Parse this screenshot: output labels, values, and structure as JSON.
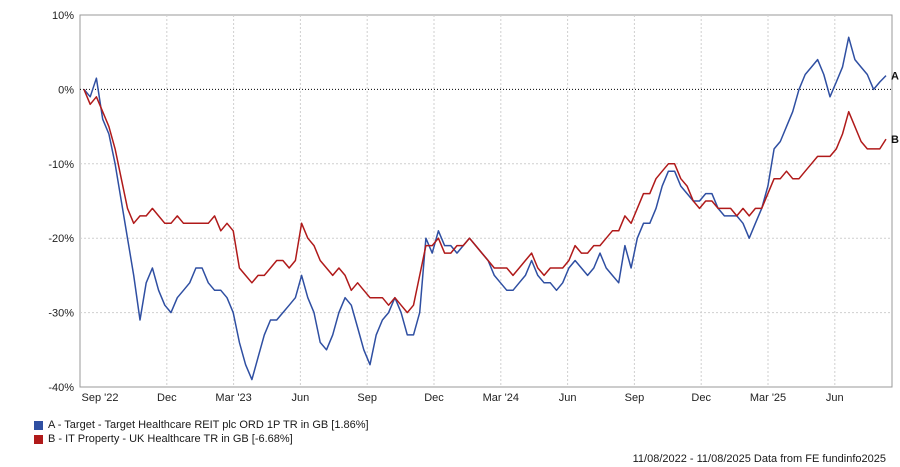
{
  "chart_data": {
    "type": "line",
    "x_ticks": [
      "Sep '22",
      "Dec",
      "Mar '23",
      "Jun",
      "Sep",
      "Dec",
      "Mar '24",
      "Jun",
      "Sep",
      "Dec",
      "Mar '25",
      "Jun"
    ],
    "y_ticks": [
      "10%",
      "0%",
      "-10%",
      "-20%",
      "-30%",
      "-40%"
    ],
    "ylim": [
      -40,
      10
    ],
    "grid": true,
    "reference_line": 0,
    "series": [
      {
        "name": "A - Target - Target Healthcare REIT plc ORD 1P TR in GB [1.86%]",
        "end_label": "A",
        "color": "#2f4fa2",
        "values": [
          0,
          -1,
          1.5,
          -4,
          -6,
          -10,
          -15,
          -20,
          -25,
          -31,
          -26,
          -24,
          -27,
          -29,
          -30,
          -28,
          -27,
          -26,
          -24,
          -24,
          -26,
          -27,
          -27,
          -28,
          -30,
          -34,
          -37,
          -39,
          -36,
          -33,
          -31,
          -31,
          -30,
          -29,
          -28,
          -25,
          -28,
          -30,
          -34,
          -35,
          -33,
          -30,
          -28,
          -29,
          -32,
          -35,
          -37,
          -33,
          -31,
          -30,
          -28,
          -30,
          -33,
          -33,
          -30,
          -20,
          -22,
          -19,
          -21,
          -21,
          -22,
          -21,
          -20,
          -21,
          -22,
          -23,
          -25,
          -26,
          -27,
          -27,
          -26,
          -25,
          -23,
          -25,
          -26,
          -26,
          -27,
          -26,
          -24,
          -23,
          -24,
          -25,
          -24,
          -22,
          -24,
          -25,
          -26,
          -21,
          -24,
          -20,
          -18,
          -18,
          -16,
          -13,
          -11,
          -11,
          -13,
          -14,
          -15,
          -15,
          -14,
          -14,
          -16,
          -17,
          -17,
          -17,
          -18,
          -20,
          -18,
          -16,
          -13,
          -8,
          -7,
          -5,
          -3,
          0,
          2,
          3,
          4,
          2,
          -1,
          1,
          3,
          7,
          4,
          3,
          2,
          0,
          1,
          1.86
        ]
      },
      {
        "name": "B - IT Property - UK Healthcare TR in GB [-6.68%]",
        "end_label": "B",
        "color": "#b01a1a",
        "values": [
          0,
          -2,
          -1,
          -3,
          -5,
          -8,
          -12,
          -16,
          -18,
          -17,
          -17,
          -16,
          -17,
          -18,
          -18,
          -17,
          -18,
          -18,
          -18,
          -18,
          -18,
          -17,
          -19,
          -18,
          -19,
          -24,
          -25,
          -26,
          -25,
          -25,
          -24,
          -23,
          -23,
          -24,
          -23,
          -18,
          -20,
          -21,
          -23,
          -24,
          -25,
          -24,
          -25,
          -27,
          -26,
          -27,
          -28,
          -28,
          -28,
          -29,
          -28,
          -29,
          -30,
          -29,
          -25,
          -21,
          -21,
          -20,
          -22,
          -22,
          -21,
          -21,
          -20,
          -21,
          -22,
          -23,
          -24,
          -24,
          -24,
          -25,
          -24,
          -23,
          -22,
          -24,
          -25,
          -24,
          -24,
          -24,
          -23,
          -21,
          -22,
          -22,
          -21,
          -21,
          -20,
          -19,
          -19,
          -17,
          -18,
          -16,
          -14,
          -14,
          -12,
          -11,
          -10,
          -10,
          -12,
          -13,
          -15,
          -16,
          -15,
          -15,
          -16,
          -16,
          -16,
          -17,
          -16,
          -17,
          -16,
          -16,
          -14,
          -12,
          -12,
          -11,
          -12,
          -12,
          -11,
          -10,
          -9,
          -9,
          -9,
          -8,
          -6,
          -3,
          -5,
          -7,
          -8,
          -8,
          -8,
          -6.68
        ]
      }
    ]
  },
  "footer": "11/08/2022 - 11/08/2025 Data from FE fundinfo2025"
}
